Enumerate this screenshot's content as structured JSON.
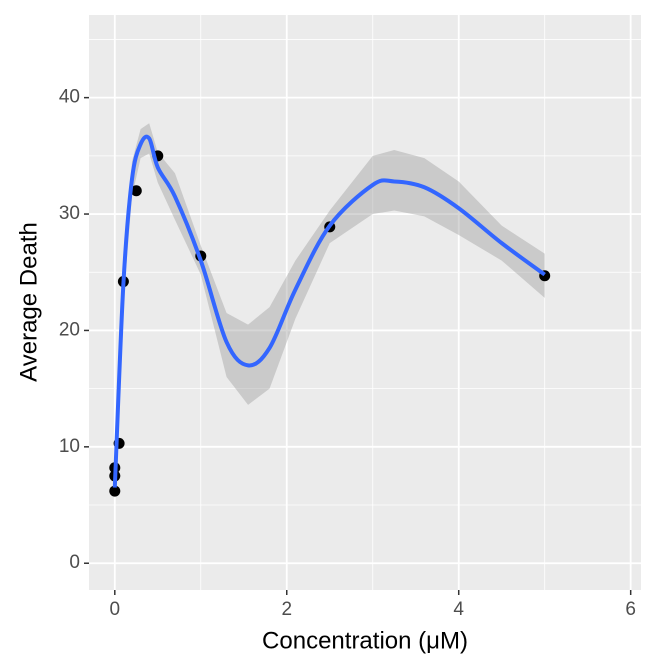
{
  "chart_data": {
    "type": "scatter",
    "x_label": "Concentration (μM)",
    "y_label": "Average Death",
    "xlim": [
      -0.3,
      6.12
    ],
    "ylim": [
      -2.3,
      47.1
    ],
    "xticks": [
      0,
      2,
      4,
      6
    ],
    "yticks": [
      0,
      10,
      20,
      30,
      40
    ],
    "x_minor_grid": [
      1,
      3,
      5
    ],
    "y_minor_grid": [
      5,
      15,
      25,
      35,
      45
    ],
    "grid": true,
    "panel_color": "#ebebeb",
    "points": {
      "color": "#000000",
      "x": [
        0,
        0,
        0,
        0.05,
        0.1,
        0.25,
        0.5,
        1,
        2.5,
        5
      ],
      "y": [
        6.2,
        7.5,
        8.2,
        10.3,
        24.2,
        32,
        35,
        26.4,
        28.9,
        24.7
      ]
    },
    "smooth": {
      "color": "#3366ff",
      "band_color": "#999999",
      "x": [
        0,
        0.1,
        0.2,
        0.3,
        0.4,
        0.5,
        0.7,
        1.0,
        1.3,
        1.55,
        1.8,
        2.1,
        2.5,
        3.0,
        3.25,
        3.6,
        4.0,
        4.5,
        5.0
      ],
      "y": [
        6.5,
        24,
        33,
        36,
        36.5,
        34,
        31.5,
        26,
        19,
        17,
        18.5,
        23.5,
        29,
        32.5,
        32.8,
        32.3,
        30.5,
        27.5,
        24.8
      ],
      "lower": [
        5.5,
        22.5,
        31.5,
        34.8,
        35.2,
        32.7,
        29.5,
        24.8,
        16,
        13.6,
        15,
        21,
        27.5,
        30,
        30.3,
        29.8,
        28.2,
        26,
        22.8
      ],
      "upper": [
        7.5,
        25.5,
        34.5,
        37.3,
        37.8,
        35.3,
        33.5,
        27.3,
        21.5,
        20.5,
        22,
        26,
        30.3,
        35,
        35.5,
        34.8,
        32.8,
        29,
        26.6
      ]
    }
  }
}
